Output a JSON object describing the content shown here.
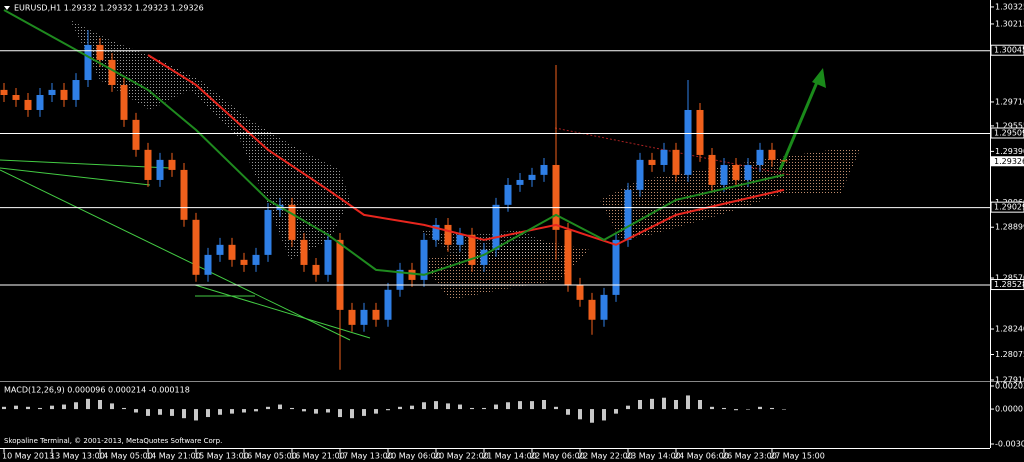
{
  "chart_data": [
    {
      "type": "candlestick",
      "title": "EURUSD,H1 1.29332 1.29332 1.29323 1.29326",
      "up_color": "#2f7fe6",
      "down_color": "#f0601c",
      "candles": [
        [
          1.29788,
          1.29833,
          1.2971,
          1.29755
        ],
        [
          1.29755,
          1.298,
          1.29678,
          1.29723
        ],
        [
          1.29723,
          1.29768,
          1.29613,
          1.29658
        ],
        [
          1.29658,
          1.298,
          1.29613,
          1.29755
        ],
        [
          1.29755,
          1.29833,
          1.2971,
          1.29788
        ],
        [
          1.29788,
          1.29833,
          1.29678,
          1.29723
        ],
        [
          1.29723,
          1.29897,
          1.29678,
          1.29852
        ],
        [
          1.29852,
          1.30175,
          1.29807,
          1.30079
        ],
        [
          1.30079,
          1.30124,
          1.29937,
          1.29982
        ],
        [
          1.29982,
          1.30027,
          1.29775,
          1.2982
        ],
        [
          1.2982,
          1.29865,
          1.29549,
          1.29594
        ],
        [
          1.29594,
          1.29639,
          1.29355,
          1.294
        ],
        [
          1.294,
          1.29445,
          1.2916,
          1.29205
        ],
        [
          1.29205,
          1.2938,
          1.2916,
          1.29335
        ],
        [
          1.29335,
          1.2938,
          1.29225,
          1.2927
        ],
        [
          1.2927,
          1.29315,
          1.28902,
          1.28947
        ],
        [
          1.28947,
          1.28992,
          1.28546,
          1.28591
        ],
        [
          1.28591,
          1.28765,
          1.28546,
          1.2872
        ],
        [
          1.2872,
          1.2883,
          1.28675,
          1.28785
        ],
        [
          1.28785,
          1.2883,
          1.28643,
          1.28688
        ],
        [
          1.28688,
          1.28733,
          1.2861,
          1.28655
        ],
        [
          1.28655,
          1.28765,
          1.2861,
          1.2872
        ],
        [
          1.2872,
          1.29056,
          1.28675,
          1.29011
        ],
        [
          1.29011,
          1.29089,
          1.28966,
          1.29044
        ],
        [
          1.29044,
          1.29089,
          1.28772,
          1.28817
        ],
        [
          1.28817,
          1.28862,
          1.2861,
          1.28655
        ],
        [
          1.28655,
          1.287,
          1.28546,
          1.28591
        ],
        [
          1.28591,
          1.28862,
          1.28546,
          1.28817
        ],
        [
          1.28817,
          1.28862,
          1.27976,
          1.28364
        ],
        [
          1.28364,
          1.28409,
          1.28222,
          1.28267
        ],
        [
          1.28267,
          1.28409,
          1.28222,
          1.28364
        ],
        [
          1.28364,
          1.28409,
          1.28255,
          1.283
        ],
        [
          1.283,
          1.28539,
          1.28255,
          1.28494
        ],
        [
          1.28494,
          1.28668,
          1.28449,
          1.28623
        ],
        [
          1.28623,
          1.28668,
          1.28513,
          1.28558
        ],
        [
          1.28558,
          1.28862,
          1.28513,
          1.28817
        ],
        [
          1.28817,
          1.28959,
          1.28772,
          1.28914
        ],
        [
          1.28914,
          1.28959,
          1.2874,
          1.28785
        ],
        [
          1.28785,
          1.28895,
          1.2874,
          1.2885
        ],
        [
          1.2885,
          1.28895,
          1.2861,
          1.28655
        ],
        [
          1.28655,
          1.28798,
          1.2861,
          1.28753
        ],
        [
          1.28753,
          1.29089,
          1.28708,
          1.29044
        ],
        [
          1.29044,
          1.29218,
          1.28999,
          1.29173
        ],
        [
          1.29173,
          1.2925,
          1.29128,
          1.29205
        ],
        [
          1.29205,
          1.29283,
          1.2916,
          1.29238
        ],
        [
          1.29238,
          1.29347,
          1.29193,
          1.29302
        ],
        [
          1.29302,
          1.29949,
          1.28688,
          1.28882
        ],
        [
          1.28882,
          1.28927,
          1.28481,
          1.28526
        ],
        [
          1.28526,
          1.28571,
          1.28384,
          1.28429
        ],
        [
          1.28429,
          1.28474,
          1.28203,
          1.283
        ],
        [
          1.283,
          1.28506,
          1.28255,
          1.28461
        ],
        [
          1.28461,
          1.28862,
          1.28416,
          1.28817
        ],
        [
          1.28817,
          1.29186,
          1.28772,
          1.29141
        ],
        [
          1.29141,
          1.2938,
          1.29096,
          1.29335
        ],
        [
          1.29335,
          1.2938,
          1.29257,
          1.29302
        ],
        [
          1.29302,
          1.29445,
          1.29257,
          1.294
        ],
        [
          1.294,
          1.29445,
          1.29193,
          1.29238
        ],
        [
          1.29238,
          1.29852,
          1.29193,
          1.29658
        ],
        [
          1.29658,
          1.29703,
          1.29322,
          1.29367
        ],
        [
          1.29367,
          1.29412,
          1.29128,
          1.29173
        ],
        [
          1.29173,
          1.29347,
          1.29128,
          1.29302
        ],
        [
          1.29302,
          1.29347,
          1.2916,
          1.29205
        ],
        [
          1.29205,
          1.29347,
          1.2916,
          1.29302
        ],
        [
          1.29302,
          1.29445,
          1.29257,
          1.294
        ],
        [
          1.294,
          1.29445,
          1.2929,
          1.29335
        ],
        [
          1.29332,
          1.29332,
          1.29323,
          1.29326
        ]
      ],
      "overlays": [
        {
          "color": "#e8261e",
          "x": [
            12,
            16,
            22,
            27,
            30,
            35,
            40,
            46,
            51,
            56,
            65
          ],
          "values": [
            1.30014,
            1.2982,
            1.294,
            1.29141,
            1.28979,
            1.28914,
            1.28817,
            1.28914,
            1.28785,
            1.28979,
            1.29141
          ]
        },
        {
          "color": "#1f8a1f",
          "x": [
            0,
            6,
            12,
            16,
            22,
            27,
            31,
            35,
            40,
            46,
            50,
            56,
            65
          ],
          "values": [
            1.30305,
            1.30047,
            1.29788,
            1.29529,
            1.29076,
            1.2885,
            1.28623,
            1.28591,
            1.2872,
            1.28979,
            1.28817,
            1.29076,
            1.29238
          ]
        }
      ],
      "ylim": [
        1.2791,
        1.3037
      ],
      "yticks": [
        1.30325,
        1.30215,
        {
          "value": 1.2971,
          "label": "1.29710"
        },
        1.29555,
        {
          "value": 1.2939,
          "label": "1.29390"
        },
        {
          "value": 1.2906,
          "label": "1.29060"
        },
        1.28899,
        {
          "value": 1.2857,
          "label": "1.28570"
        },
        {
          "value": 1.2824,
          "label": "1.28240"
        },
        1.28075,
        {
          "value": 1.2791,
          "label": "1.27910"
        }
      ],
      "levels": [
        1.30045,
        1.29509,
        1.29029,
        1.28528
      ],
      "bid": 1.29326,
      "xticks": [
        {
          "value": 0,
          "label": "10 May 2013"
        },
        {
          "value": 4,
          "label": "13 May 13:00"
        },
        {
          "value": 8,
          "label": "14 May 05:00"
        },
        {
          "value": 12,
          "label": "14 May 21:00"
        },
        {
          "value": 16,
          "label": "15 May 13:00"
        },
        {
          "value": 20,
          "label": "16 May 05:00"
        },
        {
          "value": 24,
          "label": "16 May 21:00"
        },
        {
          "value": 28,
          "label": "17 May 13:00"
        },
        {
          "value": 32,
          "label": "20 May 06:00"
        },
        {
          "value": 36,
          "label": "20 May 22:00"
        },
        {
          "value": 40,
          "label": "21 May 14:00"
        },
        {
          "value": 44,
          "label": "22 May 06:00"
        },
        {
          "value": 48,
          "label": "22 May 22:00"
        },
        {
          "value": 52,
          "label": "23 May 14:00"
        },
        {
          "value": 56,
          "label": "24 May 06:00"
        },
        {
          "value": 60,
          "label": "26 May 23:00"
        },
        {
          "value": 64,
          "label": "27 May 15:00"
        }
      ]
    },
    {
      "type": "bar",
      "title": "MACD(12,26,9) 0.000096 0.000214 -0.000118",
      "footer": "Skopaline Terminal, © 2001-2013, MetaQuotes Software Corp.",
      "color": "#c8c8c8",
      "values": [
        0.0002,
        0.0003,
        0.0002,
        0.0001,
        0.0003,
        0.0004,
        0.0006,
        0.0009,
        0.0008,
        0.0005,
        0.0001,
        -0.0003,
        -0.0006,
        -0.0005,
        -0.0006,
        -0.0008,
        -0.001,
        -0.0007,
        -0.0005,
        -0.0004,
        -0.0003,
        -0.0002,
        0.0002,
        0.0004,
        0.0001,
        -0.0002,
        -0.0004,
        -0.0003,
        -0.0007,
        -0.0008,
        -0.0006,
        -0.0004,
        -0.0001,
        0.0002,
        0.0003,
        0.0006,
        0.0007,
        0.0005,
        0.0004,
        0.0001,
        0.0001,
        0.0004,
        0.0006,
        0.0007,
        0.0007,
        0.0008,
        0.0002,
        -0.0005,
        -0.0009,
        -0.0012,
        -0.001,
        -0.0004,
        0.0003,
        0.0008,
        0.0009,
        0.001,
        0.0008,
        0.0012,
        0.0008,
        0.0002,
        0.0001,
        -0.0001,
        0,
        0.0002,
        0.0001,
        0
      ],
      "ylim": [
        -0.00307,
        0.00203
      ],
      "yticks": [
        0.00203,
        {
          "value": 0,
          "label": "0.0000"
        },
        -0.00307
      ]
    }
  ]
}
